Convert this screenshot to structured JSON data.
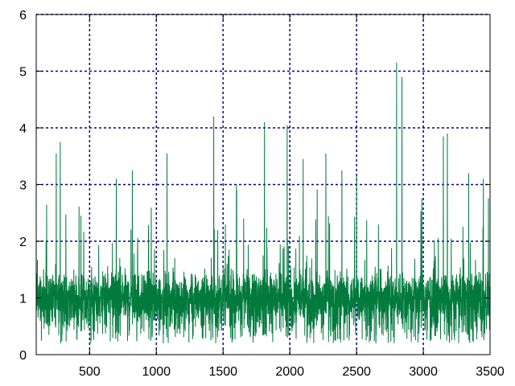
{
  "chart_data": {
    "type": "line",
    "title": "",
    "xlabel": "",
    "ylabel": "",
    "xlim": [
      100,
      3500
    ],
    "ylim": [
      0,
      6
    ],
    "x_ticks": [
      500,
      1000,
      1500,
      2000,
      2500,
      3000,
      3500
    ],
    "y_ticks": [
      0,
      1,
      2,
      3,
      4,
      5,
      6
    ],
    "grid": true,
    "legend": "none",
    "colors": {
      "series": "#007a3d",
      "grid": "#00008b",
      "axes": "#000000"
    },
    "series": [
      {
        "baseline_mean": 1.0,
        "typical_range": [
          0.3,
          2.0
        ],
        "notable_peaks": [
          {
            "x": 250,
            "y": 3.55
          },
          {
            "x": 280,
            "y": 3.75
          },
          {
            "x": 700,
            "y": 3.1
          },
          {
            "x": 820,
            "y": 3.25
          },
          {
            "x": 1080,
            "y": 3.55
          },
          {
            "x": 1430,
            "y": 4.2
          },
          {
            "x": 1600,
            "y": 3.0
          },
          {
            "x": 1810,
            "y": 4.1
          },
          {
            "x": 1980,
            "y": 4.05
          },
          {
            "x": 2100,
            "y": 3.45
          },
          {
            "x": 2270,
            "y": 3.55
          },
          {
            "x": 2390,
            "y": 3.25
          },
          {
            "x": 2500,
            "y": 3.15
          },
          {
            "x": 2800,
            "y": 5.15
          },
          {
            "x": 2840,
            "y": 4.9
          },
          {
            "x": 3150,
            "y": 3.85
          },
          {
            "x": 3180,
            "y": 3.9
          },
          {
            "x": 3340,
            "y": 3.2
          },
          {
            "x": 3450,
            "y": 3.1
          }
        ]
      }
    ]
  }
}
